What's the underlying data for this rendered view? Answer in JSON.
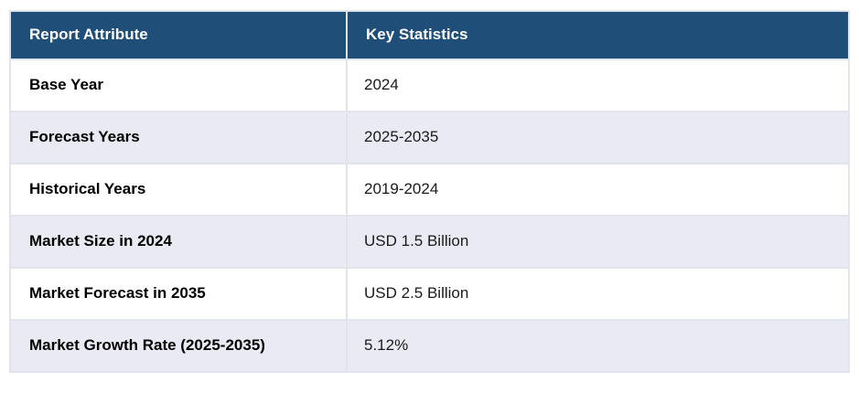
{
  "table": {
    "header": {
      "attribute": "Report Attribute",
      "statistics": "Key Statistics"
    },
    "rows": [
      {
        "attribute": "Base Year",
        "value": "2024"
      },
      {
        "attribute": "Forecast Years",
        "value": "2025-2035"
      },
      {
        "attribute": "Historical Years",
        "value": "2019-2024"
      },
      {
        "attribute": "Market Size in 2024",
        "value": "USD 1.5 Billion"
      },
      {
        "attribute": "Market Forecast in 2035",
        "value": "USD 2.5 Billion"
      },
      {
        "attribute": "Market Growth Rate (2025-2035)",
        "value": "5.12%"
      }
    ],
    "colors": {
      "header_bg": "#1F4E79",
      "header_text": "#FFFFFF",
      "row_bg": "#FFFFFF",
      "alt_row_bg": "#E9EAF3",
      "border": "#E2E4EC",
      "label_text": "#000000",
      "value_text": "#1A1A1A"
    }
  }
}
